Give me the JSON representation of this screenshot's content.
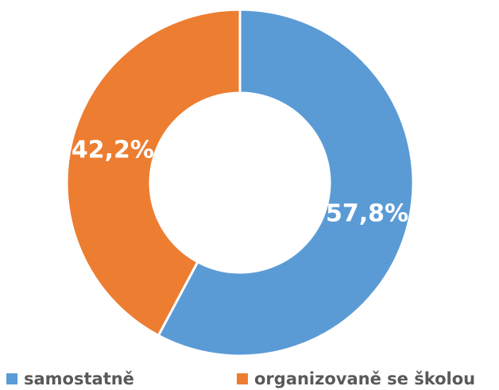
{
  "chart_data": {
    "type": "donut",
    "categories": [
      "samostatně",
      "organizovaně se školou"
    ],
    "values": [
      57.8,
      42.2
    ],
    "value_labels": [
      "57,8%",
      "42,2%"
    ],
    "colors": [
      "#5b9bd5",
      "#ed7d31"
    ],
    "legend": "bottom"
  }
}
